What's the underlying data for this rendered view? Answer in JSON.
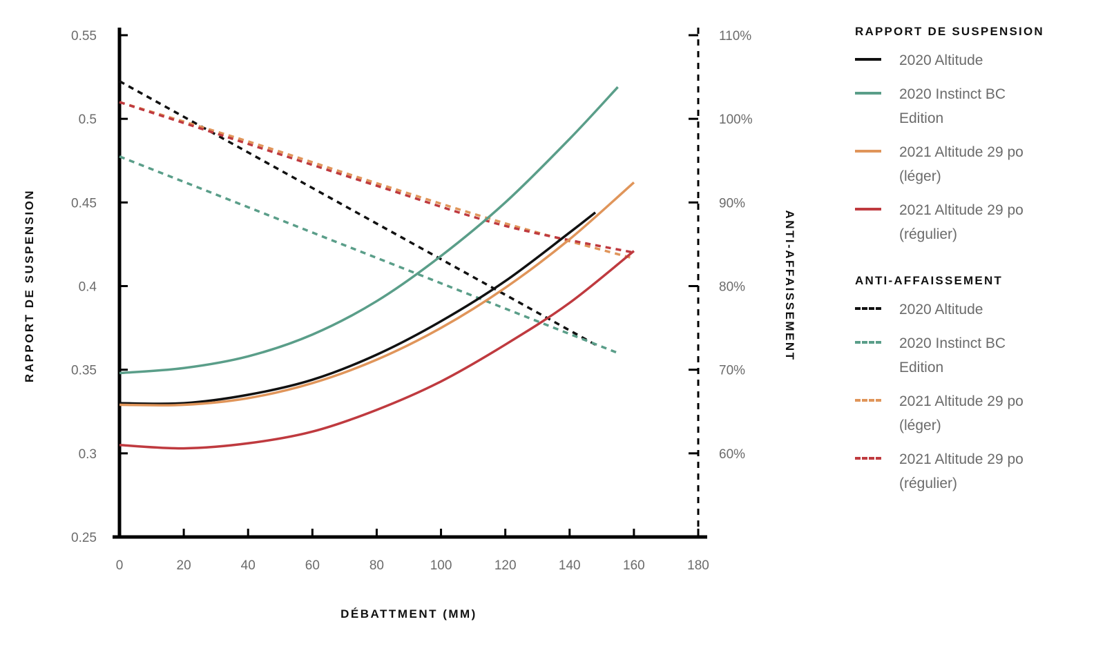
{
  "chart_data": {
    "type": "line",
    "xlabel": "DÉBATTMENT (MM)",
    "ylabel": "RAPPORT DE SUSPENSION",
    "y2label": "ANTI-AFFAISSEMENT",
    "xlim": [
      0,
      180
    ],
    "ylim": [
      0.25,
      0.55
    ],
    "y2lim": [
      50,
      110
    ],
    "xticks": [
      "0",
      "20",
      "40",
      "60",
      "80",
      "100",
      "120",
      "140",
      "160",
      "180"
    ],
    "yticks": [
      "0.25",
      "0.3",
      "0.35",
      "0.4",
      "0.45",
      "0.5",
      "0.55"
    ],
    "y2ticks": [
      "60%",
      "70%",
      "80%",
      "90%",
      "100%",
      "110%"
    ],
    "legend_position": "right",
    "legend": {
      "leverage_heading": "RAPPORT DE SUSPENSION",
      "antisquat_heading": "ANTI-AFFAISSEMENT",
      "leverage_labels": [
        "2020 Altitude",
        "2020 Instinct BC Edition",
        "2021 Altitude 29 po (léger)",
        "2021 Altitude 29 po (régulier)"
      ],
      "antisquat_labels": [
        "2020 Altitude",
        "2020 Instinct BC Edition",
        "2021 Altitude 29 po (léger)",
        "2021 Altitude 29 po (régulier)"
      ]
    },
    "series": [
      {
        "name": "2020 Altitude",
        "axis": "left",
        "style": "solid",
        "color": "#111111",
        "x": [
          0,
          20,
          40,
          60,
          80,
          100,
          120,
          140,
          148
        ],
        "y": [
          0.33,
          0.33,
          0.335,
          0.344,
          0.359,
          0.379,
          0.403,
          0.432,
          0.444
        ]
      },
      {
        "name": "2020 Instinct BC Edition",
        "axis": "left",
        "style": "solid",
        "color": "#5a9e89",
        "x": [
          0,
          20,
          40,
          60,
          80,
          100,
          120,
          140,
          155
        ],
        "y": [
          0.348,
          0.351,
          0.358,
          0.371,
          0.391,
          0.418,
          0.45,
          0.488,
          0.519
        ]
      },
      {
        "name": "2021 Altitude 29 po (léger)",
        "axis": "left",
        "style": "solid",
        "color": "#e0955a",
        "x": [
          0,
          20,
          40,
          60,
          80,
          100,
          120,
          140,
          160
        ],
        "y": [
          0.329,
          0.329,
          0.333,
          0.342,
          0.356,
          0.375,
          0.399,
          0.428,
          0.462
        ]
      },
      {
        "name": "2021 Altitude 29 po (régulier)",
        "axis": "left",
        "style": "solid",
        "color": "#bf3a3f",
        "x": [
          0,
          20,
          40,
          60,
          80,
          100,
          120,
          140,
          160
        ],
        "y": [
          0.305,
          0.303,
          0.306,
          0.313,
          0.326,
          0.343,
          0.365,
          0.39,
          0.421
        ]
      },
      {
        "name": "2020 Altitude",
        "axis": "right",
        "style": "dashed",
        "color": "#111111",
        "x": [
          0,
          148
        ],
        "y": [
          104.5,
          73.0
        ]
      },
      {
        "name": "2020 Instinct BC Edition",
        "axis": "right",
        "style": "dashed",
        "color": "#5a9e89",
        "x": [
          0,
          155
        ],
        "y": [
          95.5,
          72.0
        ]
      },
      {
        "name": "2021 Altitude 29 po (léger)",
        "axis": "right",
        "style": "dashed",
        "color": "#e0955a",
        "x": [
          0,
          40,
          80,
          120,
          160
        ],
        "y": [
          102.0,
          97.3,
          92.3,
          87.5,
          83.3
        ]
      },
      {
        "name": "2021 Altitude 29 po (régulier)",
        "axis": "right",
        "style": "dashed",
        "color": "#bf3a3f",
        "x": [
          0,
          40,
          80,
          120,
          160
        ],
        "y": [
          102.0,
          97.0,
          92.0,
          87.2,
          84.0
        ]
      }
    ]
  }
}
